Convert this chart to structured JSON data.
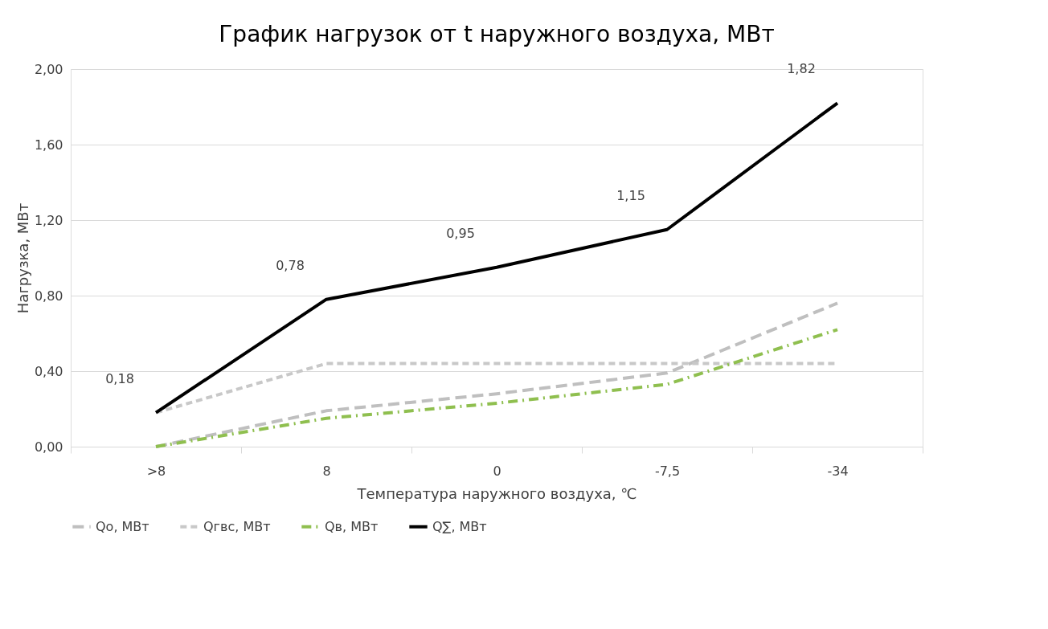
{
  "chart_data": {
    "type": "line",
    "title": "График нагрузок от t наружного воздуха, МВт",
    "xlabel": "Температура наружного воздуха, ℃",
    "ylabel": "Нагрузка, МВт",
    "categories": [
      ">8",
      "8",
      "0",
      "-7,5",
      "-34"
    ],
    "series": [
      {
        "name": "Qo, МВт",
        "color": "#bfbfbf",
        "line_style": "dashed",
        "values": [
          0.0,
          0.19,
          0.28,
          0.39,
          0.76
        ]
      },
      {
        "name": "Qгвс, МВт",
        "color": "#c8c8c8",
        "line_style": "dashed",
        "values": [
          0.18,
          0.44,
          0.44,
          0.44,
          0.44
        ]
      },
      {
        "name": "Qв, МВт",
        "color": "#8fbf4f",
        "line_style": "dotted",
        "values": [
          0.0,
          0.15,
          0.23,
          0.33,
          0.62
        ]
      },
      {
        "name": "Q∑, МВт",
        "color": "#000000",
        "line_style": "solid",
        "values": [
          0.18,
          0.78,
          0.95,
          1.15,
          1.82
        ],
        "value_labels": [
          "0,18",
          "0,78",
          "0,95",
          "1,15",
          "1,82"
        ]
      }
    ],
    "ylim": [
      0,
      2
    ],
    "yticks": [
      {
        "value": 0,
        "label": "0,00"
      },
      {
        "value": 0.4,
        "label": "0,40"
      },
      {
        "value": 0.8,
        "label": "0,80"
      },
      {
        "value": 1.2,
        "label": "1,20"
      },
      {
        "value": 1.6,
        "label": "1,60"
      },
      {
        "value": 2,
        "label": "2,00"
      }
    ],
    "grid": "y",
    "legend": "bottom",
    "marker": "none"
  }
}
